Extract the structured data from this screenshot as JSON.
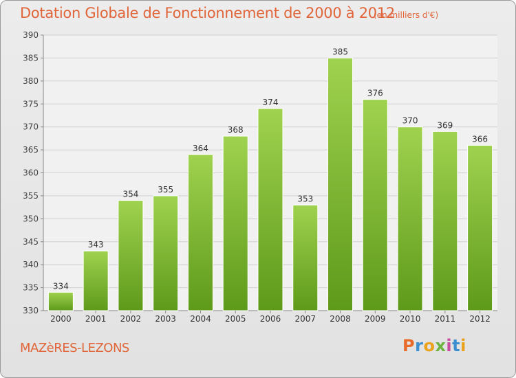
{
  "header": {
    "title": "Dotation Globale de Fonctionnement de 2000 à 2012",
    "unit_note": "(en milliers d'€)"
  },
  "footer": {
    "commune": "MAZèRES-LEZONS",
    "logo_text": "Proxiti"
  },
  "colors": {
    "bar_light": "#9fd24f",
    "bar_dark": "#5e9a1a",
    "title": "#e0663a",
    "grid": "#cfcfcf"
  },
  "chart_data": {
    "type": "bar",
    "title": "Dotation Globale de Fonctionnement de 2000 à 2012",
    "xlabel": "",
    "ylabel": "",
    "categories": [
      "2000",
      "2001",
      "2002",
      "2003",
      "2004",
      "2005",
      "2006",
      "2007",
      "2008",
      "2009",
      "2010",
      "2011",
      "2012"
    ],
    "values": [
      334,
      343,
      354,
      355,
      364,
      368,
      374,
      353,
      385,
      376,
      370,
      369,
      366
    ],
    "ylim": [
      330,
      390
    ],
    "yticks": [
      330,
      335,
      340,
      345,
      350,
      355,
      360,
      365,
      370,
      375,
      380,
      385,
      390
    ],
    "grid": true,
    "data_labels": true
  }
}
